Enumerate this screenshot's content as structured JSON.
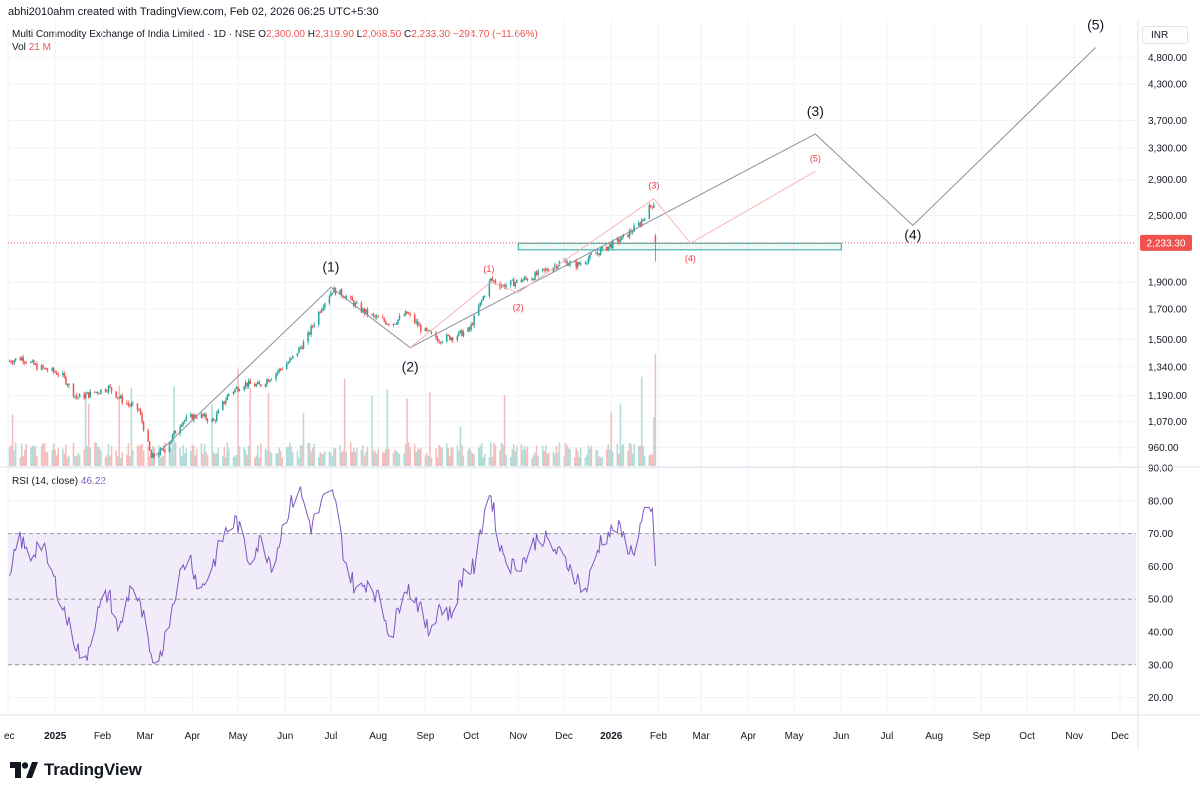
{
  "header": {
    "credit": "abhi2010ahm created with TradingView.com, Feb 02, 2026 06:25 UTC+5:30",
    "symbol": "Multi Commodity Exchange of India Limited · 1D · NSE",
    "o_label": "O",
    "o_value": "2,300.00",
    "h_label": "H",
    "h_value": "2,319.90",
    "l_label": "L",
    "l_value": "2,068.50",
    "c_label": "C",
    "c_value": "2,233.30",
    "change": "−294.70 (−11.66%)",
    "vol_label": "Vol",
    "vol_value": "21 M",
    "rsi_label": "RSI (14, close)",
    "rsi_value": "46.22",
    "currency": "INR"
  },
  "brand": {
    "name": "TradingView"
  },
  "colors": {
    "up": "#26a69a",
    "down": "#ef5350",
    "rsi": "#7e57c2",
    "rsi_band": "#f0ecf9",
    "wave": "#8c8f99",
    "wave_red": "#f7b6b6",
    "box": "#26a69a",
    "grid": "#f0f3fa",
    "axis_text": "#131722"
  },
  "chart_data": [
    {
      "type": "candlestick",
      "title": "Multi Commodity Exchange of India Limited · 1D · NSE",
      "y_scale": "log",
      "ylim": [
        890,
        5600
      ],
      "y_ticks": [
        "4,800.00",
        "4,300.00",
        "3,700.00",
        "3,300.00",
        "2,900.00",
        "2,500.00",
        "2,233.30",
        "1,900.00",
        "1,700.00",
        "1,500.00",
        "1,340.00",
        "1,190.00",
        "1,070.00",
        "960.00"
      ],
      "y_tick_values": [
        4800,
        4300,
        3700,
        3300,
        2900,
        2500,
        2233.3,
        1900,
        1700,
        1500,
        1340,
        1190,
        1070,
        960
      ],
      "last_price": "2,233.30",
      "x_ticks": [
        "ec",
        "2025",
        "Feb",
        "Mar",
        "Apr",
        "May",
        "Jun",
        "Jul",
        "Aug",
        "Sep",
        "Oct",
        "Nov",
        "Dec",
        "2026",
        "Feb",
        "Mar",
        "Apr",
        "May",
        "Jun",
        "Jul",
        "Aug",
        "Sep",
        "Oct",
        "Nov",
        "Dec"
      ],
      "x_tick_dates": [
        "2024-12-01",
        "2025-01-01",
        "2025-02-01",
        "2025-03-01",
        "2025-04-01",
        "2025-05-01",
        "2025-06-01",
        "2025-07-01",
        "2025-08-01",
        "2025-09-01",
        "2025-10-01",
        "2025-11-01",
        "2025-12-01",
        "2026-01-01",
        "2026-02-01",
        "2026-03-01",
        "2026-04-01",
        "2026-05-01",
        "2026-06-01",
        "2026-07-01",
        "2026-08-01",
        "2026-09-01",
        "2026-10-01",
        "2026-11-01",
        "2026-12-01"
      ],
      "price_path": [
        [
          "2024-12-01",
          1370
        ],
        [
          "2024-12-10",
          1390
        ],
        [
          "2024-12-20",
          1340
        ],
        [
          "2025-01-05",
          1300
        ],
        [
          "2025-01-15",
          1180
        ],
        [
          "2025-01-25",
          1200
        ],
        [
          "2025-02-05",
          1230
        ],
        [
          "2025-02-15",
          1160
        ],
        [
          "2025-02-25",
          1120
        ],
        [
          "2025-03-05",
          920
        ],
        [
          "2025-03-15",
          960
        ],
        [
          "2025-03-25",
          1070
        ],
        [
          "2025-04-05",
          1100
        ],
        [
          "2025-04-15",
          1070
        ],
        [
          "2025-04-25",
          1200
        ],
        [
          "2025-05-05",
          1250
        ],
        [
          "2025-05-15",
          1240
        ],
        [
          "2025-05-25",
          1300
        ],
        [
          "2025-06-05",
          1380
        ],
        [
          "2025-06-15",
          1500
        ],
        [
          "2025-06-25",
          1720
        ],
        [
          "2025-07-02",
          1840
        ],
        [
          "2025-07-10",
          1800
        ],
        [
          "2025-07-20",
          1700
        ],
        [
          "2025-07-30",
          1640
        ],
        [
          "2025-08-10",
          1600
        ],
        [
          "2025-08-20",
          1670
        ],
        [
          "2025-08-30",
          1560
        ],
        [
          "2025-09-10",
          1500
        ],
        [
          "2025-09-20",
          1520
        ],
        [
          "2025-09-30",
          1560
        ],
        [
          "2025-10-08",
          1760
        ],
        [
          "2025-10-14",
          1920
        ],
        [
          "2025-10-22",
          1870
        ],
        [
          "2025-10-30",
          1900
        ],
        [
          "2025-11-10",
          1940
        ],
        [
          "2025-11-20",
          2000
        ],
        [
          "2025-11-30",
          2070
        ],
        [
          "2025-12-10",
          2040
        ],
        [
          "2025-12-20",
          2120
        ],
        [
          "2025-12-30",
          2200
        ],
        [
          "2026-01-10",
          2290
        ],
        [
          "2026-01-20",
          2420
        ],
        [
          "2026-01-26",
          2580
        ],
        [
          "2026-01-30",
          2650
        ],
        [
          "2026-02-01",
          2233.3
        ]
      ],
      "volume_unit": "M",
      "volume_last": "21 M",
      "support_zone": {
        "low": 2170,
        "high": 2230,
        "from": "2025-11-01",
        "to": "2026-06-01"
      },
      "wave_labels_major": [
        {
          "label": "(1)",
          "date": "2025-07-01",
          "price": 1880
        },
        {
          "label": "(2)",
          "date": "2025-08-22",
          "price": 1430
        },
        {
          "label": "(3)",
          "date": "2026-05-15",
          "price": 3520
        },
        {
          "label": "(4)",
          "date": "2026-07-18",
          "price": 2380
        },
        {
          "label": "(5)",
          "date": "2026-11-15",
          "price": 5100
        }
      ],
      "wave_labels_minor": [
        {
          "label": "(1)",
          "date": "2025-10-14",
          "price": 1920
        },
        {
          "label": "(2)",
          "date": "2025-11-01",
          "price": 1800
        },
        {
          "label": "(3)",
          "date": "2026-01-29",
          "price": 2720
        },
        {
          "label": "(4)",
          "date": "2026-02-22",
          "price": 2200
        },
        {
          "label": "(5)",
          "date": "2026-05-15",
          "price": 3050
        }
      ]
    },
    {
      "type": "line",
      "title": "RSI (14, close)",
      "ylim": [
        15,
        90
      ],
      "y_ticks": [
        "90.00",
        "80.00",
        "70.00",
        "60.00",
        "50.00",
        "40.00",
        "30.00",
        "20.00"
      ],
      "y_tick_values": [
        90,
        80,
        70,
        60,
        50,
        40,
        30,
        20
      ],
      "bands": [
        30,
        50,
        70
      ],
      "series": [
        {
          "name": "RSI (14, close)",
          "values": [
            [
              "2024-12-01",
              52
            ],
            [
              "2024-12-08",
              70
            ],
            [
              "2024-12-15",
              62
            ],
            [
              "2024-12-22",
              68
            ],
            [
              "2025-01-01",
              55
            ],
            [
              "2025-01-10",
              42
            ],
            [
              "2025-01-20",
              30
            ],
            [
              "2025-01-28",
              45
            ],
            [
              "2025-02-05",
              52
            ],
            [
              "2025-02-12",
              40
            ],
            [
              "2025-02-20",
              55
            ],
            [
              "2025-02-28",
              44
            ],
            [
              "2025-03-06",
              28
            ],
            [
              "2025-03-14",
              38
            ],
            [
              "2025-03-22",
              55
            ],
            [
              "2025-03-30",
              64
            ],
            [
              "2025-04-06",
              52
            ],
            [
              "2025-04-14",
              60
            ],
            [
              "2025-04-22",
              70
            ],
            [
              "2025-04-30",
              74
            ],
            [
              "2025-05-08",
              62
            ],
            [
              "2025-05-16",
              68
            ],
            [
              "2025-05-24",
              60
            ],
            [
              "2025-06-01",
              75
            ],
            [
              "2025-06-10",
              84
            ],
            [
              "2025-06-18",
              72
            ],
            [
              "2025-06-26",
              80
            ],
            [
              "2025-07-03",
              82
            ],
            [
              "2025-07-10",
              62
            ],
            [
              "2025-07-18",
              52
            ],
            [
              "2025-07-26",
              56
            ],
            [
              "2025-08-03",
              48
            ],
            [
              "2025-08-10",
              38
            ],
            [
              "2025-08-18",
              55
            ],
            [
              "2025-08-26",
              50
            ],
            [
              "2025-09-03",
              40
            ],
            [
              "2025-09-10",
              48
            ],
            [
              "2025-09-18",
              45
            ],
            [
              "2025-09-26",
              58
            ],
            [
              "2025-10-04",
              60
            ],
            [
              "2025-10-10",
              78
            ],
            [
              "2025-10-14",
              82
            ],
            [
              "2025-10-20",
              66
            ],
            [
              "2025-10-28",
              60
            ],
            [
              "2025-11-05",
              62
            ],
            [
              "2025-11-15",
              70
            ],
            [
              "2025-11-25",
              65
            ],
            [
              "2025-12-05",
              60
            ],
            [
              "2025-12-15",
              52
            ],
            [
              "2025-12-25",
              68
            ],
            [
              "2026-01-05",
              72
            ],
            [
              "2026-01-15",
              64
            ],
            [
              "2026-01-22",
              75
            ],
            [
              "2026-01-28",
              76
            ],
            [
              "2026-02-01",
              46.22
            ]
          ]
        }
      ]
    }
  ]
}
